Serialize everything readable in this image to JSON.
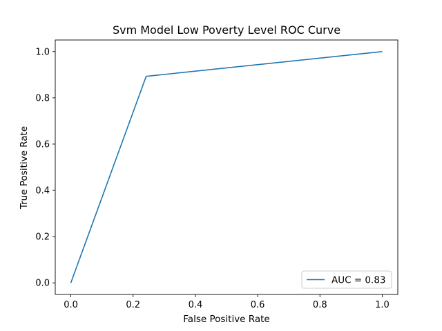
{
  "chart_data": {
    "type": "line",
    "title": "Svm Model Low Poverty Level ROC Curve",
    "xlabel": "False Positive Rate",
    "ylabel": "True Positive Rate",
    "xlim": [
      -0.05,
      1.05
    ],
    "ylim": [
      -0.05,
      1.05
    ],
    "xticks": [
      0.0,
      0.2,
      0.4,
      0.6,
      0.8,
      1.0
    ],
    "yticks": [
      0.0,
      0.2,
      0.4,
      0.6,
      0.8,
      1.0
    ],
    "xtick_labels": [
      "0.0",
      "0.2",
      "0.4",
      "0.6",
      "0.8",
      "1.0"
    ],
    "ytick_labels": [
      "0.0",
      "0.2",
      "0.4",
      "0.6",
      "0.8",
      "1.0"
    ],
    "grid": false,
    "legend_position": "lower-right",
    "series": [
      {
        "name": "AUC = 0.83",
        "color": "#1f77b4",
        "x": [
          0.0,
          0.242,
          1.0
        ],
        "y": [
          0.0,
          0.893,
          1.0
        ]
      }
    ]
  }
}
